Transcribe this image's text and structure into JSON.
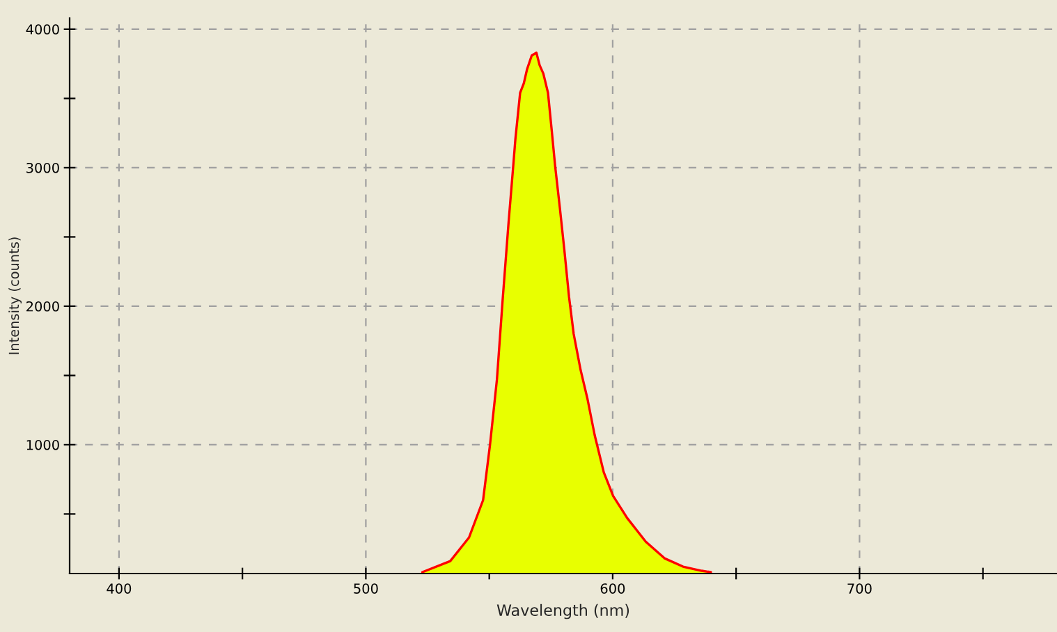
{
  "chart_data": {
    "type": "area",
    "xlabel": "Wavelength (nm)",
    "ylabel": "Intensity (counts)",
    "xlim": [
      380,
      780
    ],
    "ylim": [
      70,
      4080
    ],
    "xticks": [
      400,
      {
        "value": 450,
        "label": null
      },
      500,
      {
        "value": 550,
        "label": null
      },
      600,
      {
        "value": 650,
        "label": null
      },
      700,
      {
        "value": 750,
        "label": null
      }
    ],
    "yticks": [
      {
        "value": 500,
        "label": null
      },
      1000,
      {
        "value": 1500,
        "label": null
      },
      2000,
      {
        "value": 2500,
        "label": null
      },
      3000,
      {
        "value": 3500,
        "label": null
      },
      4000
    ],
    "grid": true,
    "line_style": "solid",
    "series": [
      {
        "color": "#e8ff00",
        "x": [
          522.9,
          534.2,
          541.8,
          547.5,
          550.3,
          553.1,
          555.4,
          557.8,
          559.7,
          560.6,
          562.5,
          564.0,
          565.3,
          567.2,
          569.1,
          570.4,
          571.9,
          573.8,
          575.3,
          576.7,
          578.6,
          580.4,
          582.3,
          584.2,
          587.0,
          589.8,
          592.7,
          596.4,
          600.2,
          605.9,
          613.4,
          621.0,
          628.5,
          636.0,
          639.8
        ],
        "values": [
          80,
          160,
          330,
          600,
          1000,
          1470,
          2040,
          2600,
          3010,
          3210,
          3540,
          3610,
          3710,
          3810,
          3830,
          3740,
          3680,
          3540,
          3270,
          3010,
          2710,
          2410,
          2070,
          1800,
          1540,
          1330,
          1070,
          800,
          630,
          470,
          300,
          180,
          120,
          90,
          80
        ]
      }
    ]
  }
}
